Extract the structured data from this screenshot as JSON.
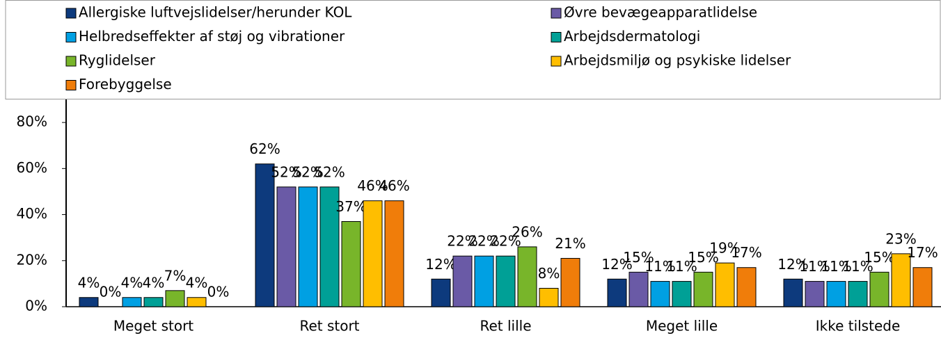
{
  "chart_data": {
    "type": "bar",
    "categories": [
      "Meget stort",
      "Ret stort",
      "Ret lille",
      "Meget lille",
      "Ikke tilstede"
    ],
    "series": [
      {
        "name": "Allergiske luftvejslidelser/herunder KOL",
        "color": "#0d3a7d",
        "values": [
          4,
          62,
          12,
          12,
          12
        ],
        "value_labels": [
          "4%",
          "62%",
          "12%",
          "12%",
          "12%"
        ]
      },
      {
        "name": "Øvre bevægeapparatlidelse",
        "color": "#6a5aa6",
        "values": [
          0,
          52,
          22,
          15,
          11
        ],
        "value_labels": [
          "0%",
          "52%",
          "22%",
          "15%",
          "11%"
        ]
      },
      {
        "name": "Helbredseffekter af støj og vibrationer",
        "color": "#00a0e3",
        "values": [
          4,
          52,
          22,
          11,
          11
        ],
        "value_labels": [
          "4%",
          "52%",
          "22%",
          "11%",
          "11%"
        ]
      },
      {
        "name": "Arbejdsdermatologi",
        "color": "#00a096",
        "values": [
          4,
          52,
          22,
          11,
          11
        ],
        "value_labels": [
          "4%",
          "52%",
          "22%",
          "11%",
          "11%"
        ]
      },
      {
        "name": "Ryglidelser",
        "color": "#78b52a",
        "values": [
          7,
          37,
          26,
          15,
          15
        ],
        "value_labels": [
          "7%",
          "37%",
          "26%",
          "15%",
          "15%"
        ]
      },
      {
        "name": "Arbejdsmiljø og psykiske lidelser",
        "color": "#ffbe00",
        "values": [
          4,
          46,
          8,
          19,
          23
        ],
        "value_labels": [
          "4%",
          "46%",
          "8%",
          "19%",
          "23%"
        ]
      },
      {
        "name": "Forebyggelse",
        "color": "#f07d0a",
        "values": [
          0,
          46,
          21,
          17,
          17
        ],
        "value_labels": [
          "0%",
          "46%",
          "21%",
          "17%",
          "17%"
        ]
      }
    ],
    "ylim": [
      0,
      90
    ],
    "yticks": [
      {
        "value": 0,
        "label": "0%"
      },
      {
        "value": 20,
        "label": "20%"
      },
      {
        "value": 40,
        "label": "40%"
      },
      {
        "value": 60,
        "label": "60%"
      },
      {
        "value": 80,
        "label": "80%"
      }
    ],
    "legend": "top"
  }
}
